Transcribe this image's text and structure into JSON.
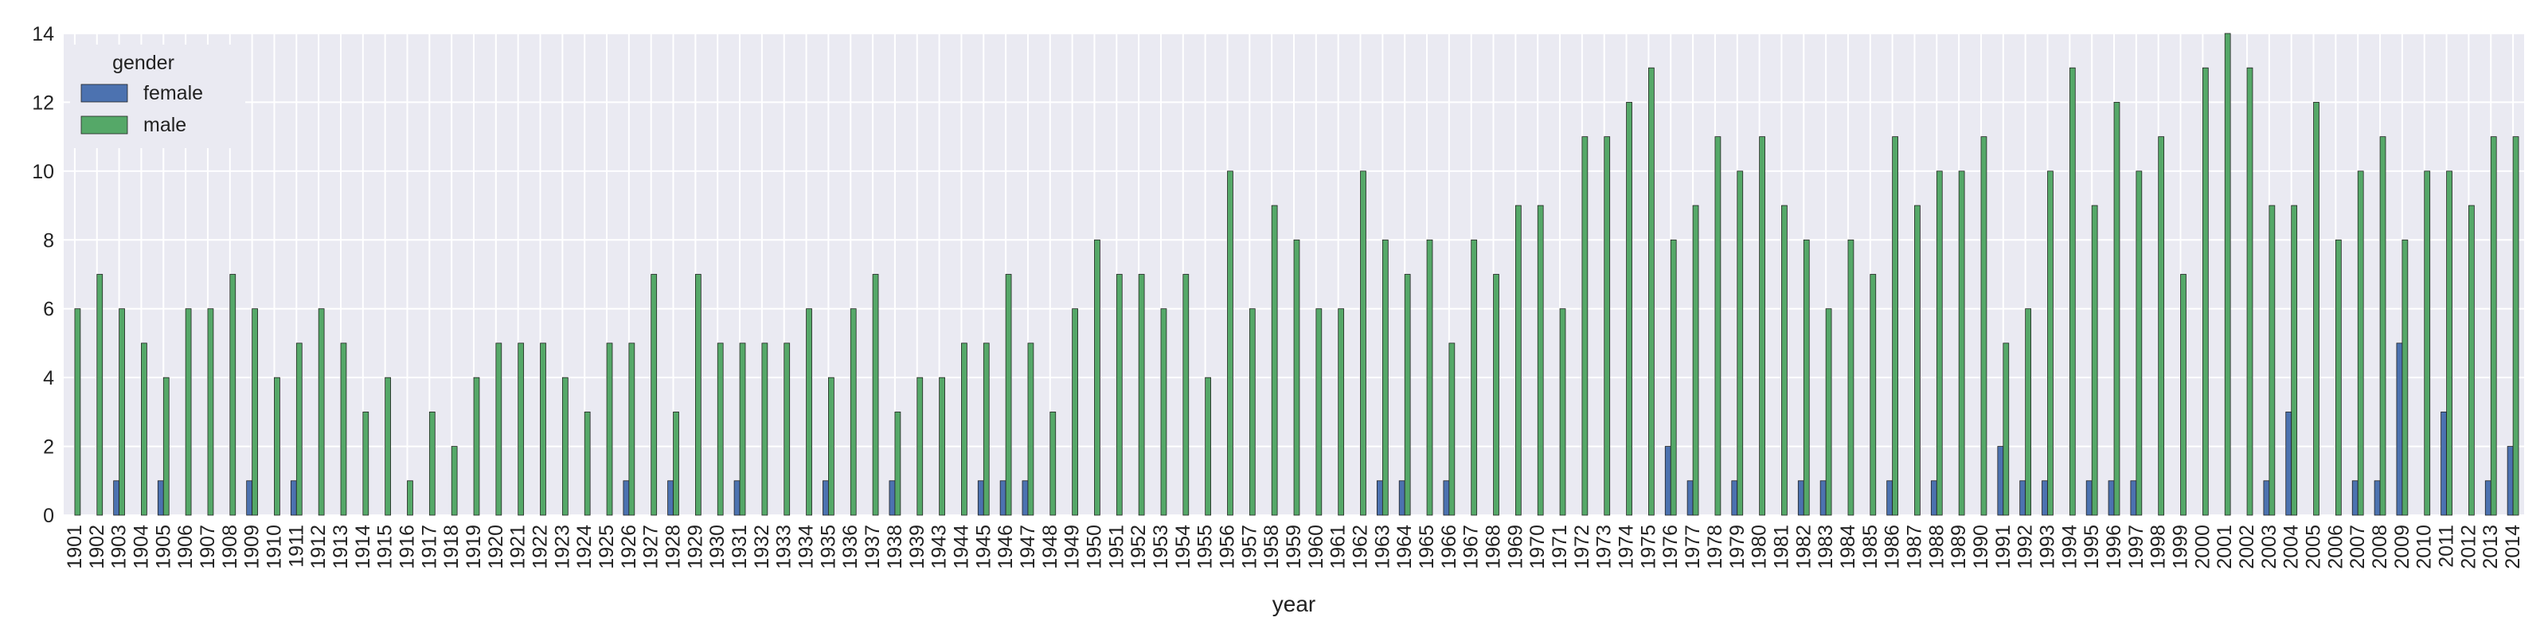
{
  "chart_data": {
    "type": "bar",
    "xlabel": "year",
    "ylabel": "",
    "ylim": [
      0,
      14
    ],
    "yticks": [
      0,
      2,
      4,
      6,
      8,
      10,
      12,
      14
    ],
    "grid": true,
    "legend": {
      "title": "gender",
      "placement": "top-left"
    },
    "categories": [
      "1901",
      "1902",
      "1903",
      "1904",
      "1905",
      "1906",
      "1907",
      "1908",
      "1909",
      "1910",
      "1911",
      "1912",
      "1913",
      "1914",
      "1915",
      "1916",
      "1917",
      "1918",
      "1919",
      "1920",
      "1921",
      "1922",
      "1923",
      "1924",
      "1925",
      "1926",
      "1927",
      "1928",
      "1929",
      "1930",
      "1931",
      "1932",
      "1933",
      "1934",
      "1935",
      "1936",
      "1937",
      "1938",
      "1939",
      "1943",
      "1944",
      "1945",
      "1946",
      "1947",
      "1948",
      "1949",
      "1950",
      "1951",
      "1952",
      "1953",
      "1954",
      "1955",
      "1956",
      "1957",
      "1958",
      "1959",
      "1960",
      "1961",
      "1962",
      "1963",
      "1964",
      "1965",
      "1966",
      "1967",
      "1968",
      "1969",
      "1970",
      "1971",
      "1972",
      "1973",
      "1974",
      "1975",
      "1976",
      "1977",
      "1978",
      "1979",
      "1980",
      "1981",
      "1982",
      "1983",
      "1984",
      "1985",
      "1986",
      "1987",
      "1988",
      "1989",
      "1990",
      "1991",
      "1992",
      "1993",
      "1994",
      "1995",
      "1996",
      "1997",
      "1998",
      "1999",
      "2000",
      "2001",
      "2002",
      "2003",
      "2004",
      "2005",
      "2006",
      "2007",
      "2008",
      "2009",
      "2010",
      "2011",
      "2012",
      "2013",
      "2014"
    ],
    "series": [
      {
        "name": "female",
        "color": "#4C72B0",
        "values": [
          0,
          0,
          1,
          0,
          1,
          0,
          0,
          0,
          1,
          0,
          1,
          0,
          0,
          0,
          0,
          0,
          0,
          0,
          0,
          0,
          0,
          0,
          0,
          0,
          0,
          1,
          0,
          1,
          0,
          0,
          1,
          0,
          0,
          0,
          1,
          0,
          0,
          1,
          0,
          0,
          0,
          1,
          1,
          1,
          0,
          0,
          0,
          0,
          0,
          0,
          0,
          0,
          0,
          0,
          0,
          0,
          0,
          0,
          0,
          1,
          1,
          0,
          1,
          0,
          0,
          0,
          0,
          0,
          0,
          0,
          0,
          0,
          2,
          1,
          0,
          1,
          0,
          0,
          1,
          1,
          0,
          0,
          1,
          0,
          1,
          0,
          0,
          2,
          1,
          1,
          0,
          1,
          1,
          1,
          0,
          0,
          0,
          0,
          0,
          1,
          3,
          0,
          0,
          1,
          1,
          5,
          0,
          3,
          0,
          1,
          2
        ]
      },
      {
        "name": "male",
        "color": "#55A868",
        "values": [
          6,
          7,
          6,
          5,
          4,
          6,
          6,
          7,
          6,
          4,
          5,
          6,
          5,
          3,
          4,
          1,
          3,
          2,
          4,
          5,
          5,
          5,
          4,
          3,
          5,
          5,
          7,
          3,
          7,
          5,
          5,
          5,
          5,
          6,
          4,
          6,
          7,
          3,
          4,
          4,
          5,
          5,
          7,
          5,
          3,
          6,
          8,
          7,
          7,
          6,
          7,
          4,
          10,
          6,
          9,
          8,
          6,
          6,
          10,
          8,
          7,
          8,
          5,
          8,
          7,
          9,
          9,
          6,
          11,
          11,
          12,
          13,
          8,
          9,
          11,
          10,
          11,
          9,
          8,
          6,
          8,
          7,
          11,
          9,
          10,
          10,
          11,
          5,
          6,
          10,
          13,
          9,
          12,
          10,
          11,
          7,
          13,
          14,
          13,
          9,
          9,
          12,
          8,
          10,
          11,
          8,
          10,
          10,
          9,
          11,
          11
        ]
      }
    ]
  }
}
